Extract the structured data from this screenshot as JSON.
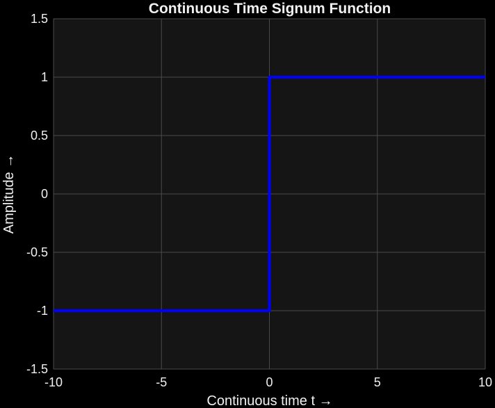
{
  "chart_data": {
    "type": "line",
    "title": "Continuous Time Signum Function",
    "xlabel": "Continuous time t →",
    "ylabel": "Amplitude →",
    "xlim": [
      -10,
      10
    ],
    "ylim": [
      -1.5,
      1.5
    ],
    "xticks": [
      -10,
      -5,
      0,
      5,
      10
    ],
    "xtick_labels": [
      "-10",
      "-5",
      "0",
      "5",
      "10"
    ],
    "yticks": [
      -1.5,
      -1,
      -0.5,
      0,
      0.5,
      1,
      1.5
    ],
    "ytick_labels": [
      "-1.5",
      "-1",
      "-0.5",
      "0",
      "0.5",
      "1",
      "1.5"
    ],
    "grid": true,
    "series": [
      {
        "color": "#0000ff",
        "x": [
          -10,
          0,
          0,
          10
        ],
        "y": [
          -1,
          -1,
          1,
          1
        ]
      }
    ]
  },
  "colors": {
    "figure_background": "#000000",
    "axes_background": "#151515",
    "grid": "#4a4a4a",
    "text": "#f0f0f0",
    "line": "#0000ff"
  }
}
